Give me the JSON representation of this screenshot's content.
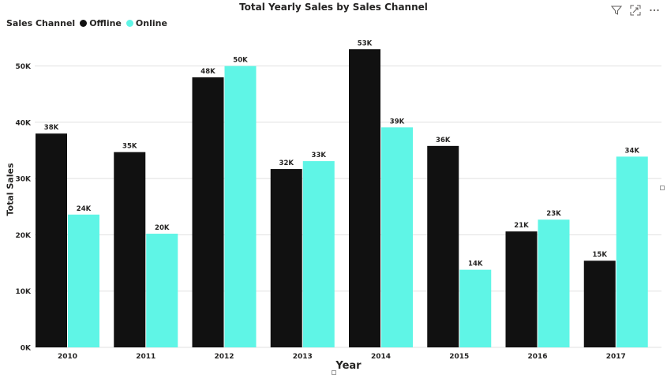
{
  "visual": {
    "title": "Total Yearly Sales by Sales Channel",
    "icons": [
      "filter-icon",
      "focus-mode-icon",
      "more-options-icon"
    ]
  },
  "legend": {
    "title": "Sales Channel",
    "items": [
      {
        "label": "Offline",
        "color": "#111111"
      },
      {
        "label": "Online",
        "color": "#5FF5E6"
      }
    ]
  },
  "chart_data": {
    "type": "bar",
    "title": "Total Yearly Sales by Sales Channel",
    "xlabel": "Year",
    "ylabel": "Total Sales",
    "categories": [
      "2010",
      "2011",
      "2012",
      "2013",
      "2014",
      "2015",
      "2016",
      "2017"
    ],
    "series": [
      {
        "name": "Offline",
        "color": "#111111",
        "values": [
          38000,
          34700,
          48000,
          31700,
          53000,
          35800,
          20600,
          15400
        ],
        "labels": [
          "38K",
          "35K",
          "48K",
          "32K",
          "53K",
          "36K",
          "21K",
          "15K"
        ]
      },
      {
        "name": "Online",
        "color": "#5FF5E6",
        "values": [
          23600,
          20200,
          50000,
          33100,
          39100,
          13800,
          22700,
          33900
        ],
        "labels": [
          "24K",
          "20K",
          "50K",
          "33K",
          "39K",
          "14K",
          "23K",
          "34K"
        ]
      }
    ],
    "ylim": [
      0,
      55000
    ],
    "yticks": [
      0,
      10000,
      20000,
      30000,
      40000,
      50000
    ],
    "ytick_labels": [
      "0K",
      "10K",
      "20K",
      "30K",
      "40K",
      "50K"
    ],
    "grid": true,
    "legend_position": "top-left"
  }
}
